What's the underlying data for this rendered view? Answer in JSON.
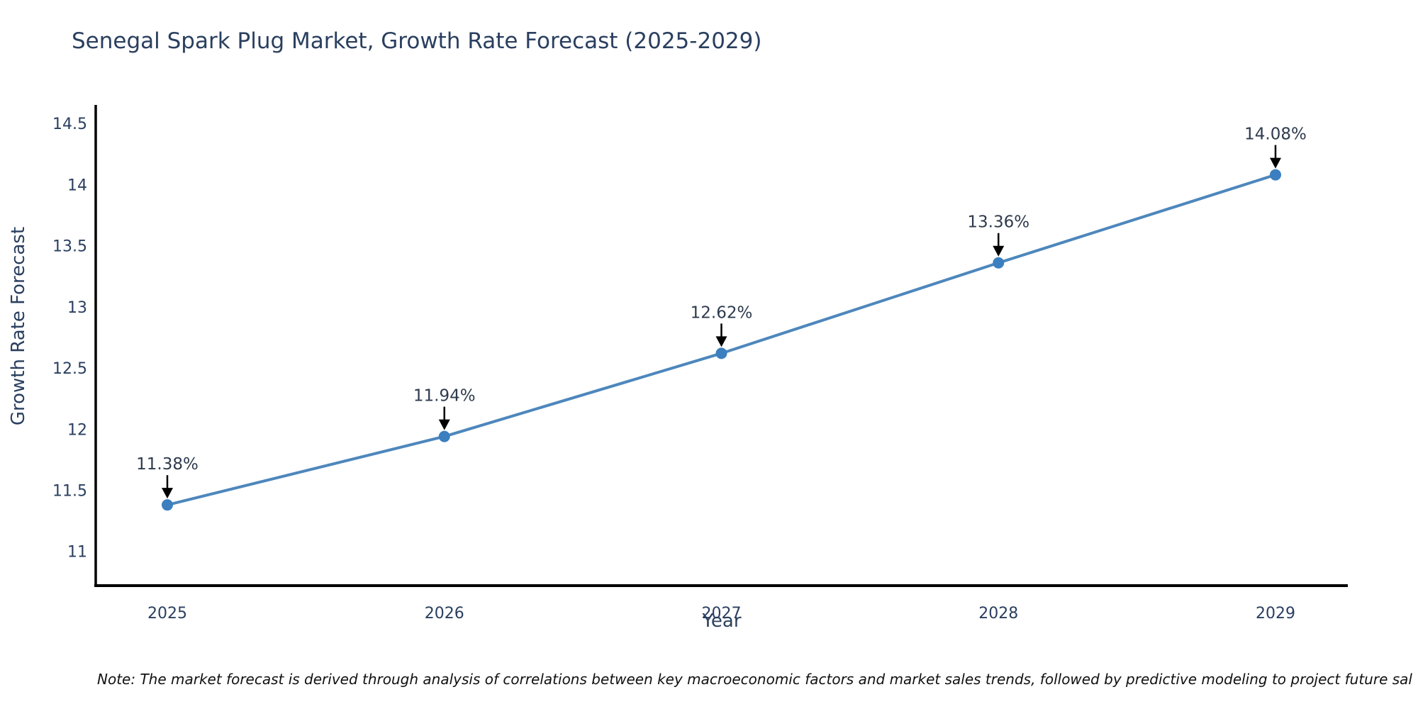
{
  "title": "Senegal Spark Plug Market, Growth Rate Forecast (2025-2029)",
  "note": "Note: The market forecast is derived through analysis of correlations between key macroeconomic factors and market sales trends, followed by predictive modeling to project future sal",
  "chart_data": {
    "type": "line",
    "title": "Senegal Spark Plug Market, Growth Rate Forecast (2025-2029)",
    "x": [
      2025,
      2026,
      2027,
      2028,
      2029
    ],
    "values": [
      11.38,
      11.94,
      12.62,
      13.36,
      14.08
    ],
    "point_labels": [
      "11.38%",
      "11.94%",
      "12.62%",
      "13.36%",
      "14.08%"
    ],
    "xtick_labels": [
      "2025",
      "2026",
      "2027",
      "2028",
      "2029"
    ],
    "yticks": [
      11,
      11.5,
      12,
      12.5,
      13,
      13.5,
      14,
      14.5
    ],
    "ytick_labels": [
      "11",
      "11.5",
      "12",
      "12.5",
      "13",
      "13.5",
      "14",
      "14.5"
    ],
    "xlabel": "Year",
    "ylabel": "Growth Rate Forecast",
    "ylim": [
      10.72,
      14.64
    ],
    "grid": false,
    "legend_position": "none",
    "annotation_style": "down-arrow",
    "colors": {
      "line": "#4d87bc",
      "marker": "#3b7fc0",
      "axis": "#000000",
      "text": "#2a3f5f",
      "annotation_text": "#2e3b4e",
      "arrow": "#000000"
    }
  }
}
